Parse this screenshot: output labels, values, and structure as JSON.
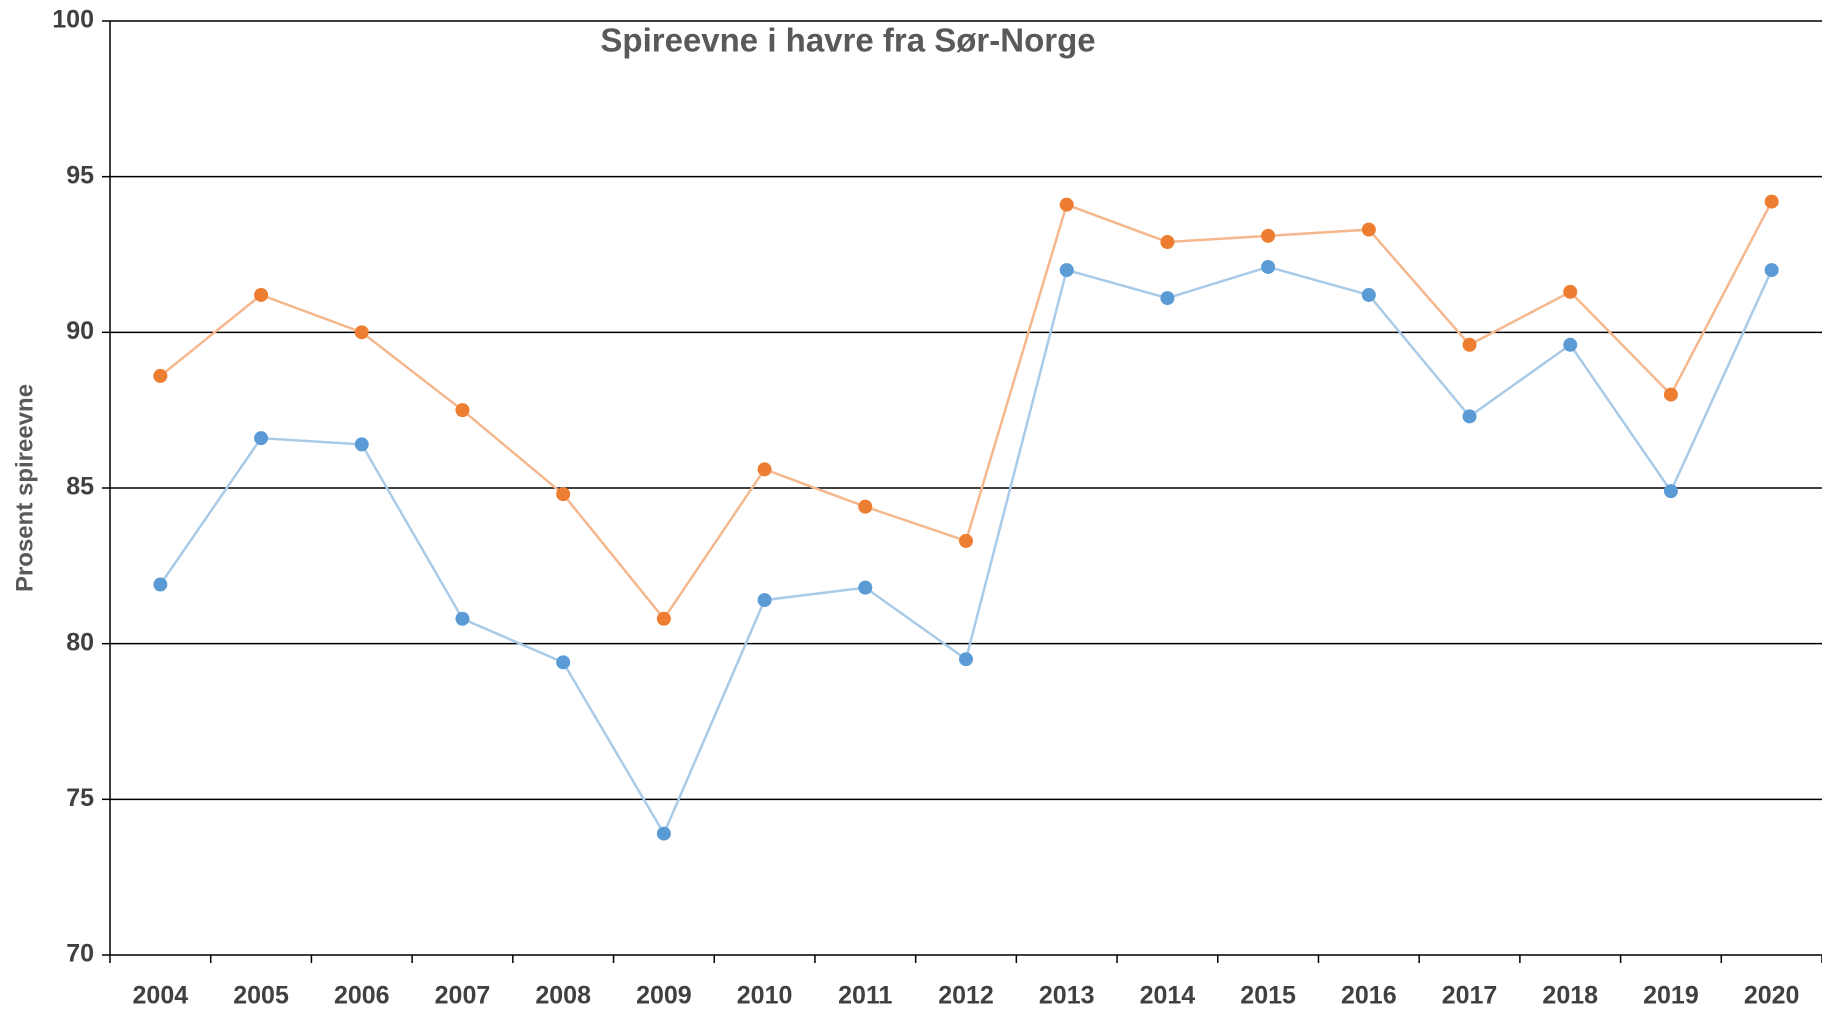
{
  "chart_data": {
    "type": "line",
    "title": "Spireevne i havre fra Sør-Norge",
    "y_label": "Prosent spireevne",
    "categories": [
      "2004",
      "2005",
      "2006",
      "2007",
      "2008",
      "2009",
      "2010",
      "2011",
      "2012",
      "2013",
      "2014",
      "2015",
      "2016",
      "2017",
      "2018",
      "2019",
      "2020"
    ],
    "series": [
      {
        "color": "#5b9bd5",
        "line_color": "#a9cbe8",
        "values": [
          81.9,
          86.6,
          86.4,
          80.8,
          79.4,
          73.9,
          81.4,
          81.8,
          79.5,
          92.0,
          91.1,
          92.1,
          91.2,
          87.3,
          89.6,
          84.9,
          92.0
        ]
      },
      {
        "color": "#ed7d31",
        "line_color": "#f5b88e",
        "values": [
          88.6,
          91.2,
          90.0,
          87.5,
          84.8,
          80.8,
          85.6,
          84.4,
          83.3,
          94.1,
          92.9,
          93.1,
          93.3,
          89.6,
          91.3,
          88.0,
          94.2
        ]
      }
    ],
    "ylim": [
      70,
      100
    ],
    "yticks": [
      70,
      75,
      80,
      85,
      90,
      95,
      100
    ],
    "grid": true
  }
}
